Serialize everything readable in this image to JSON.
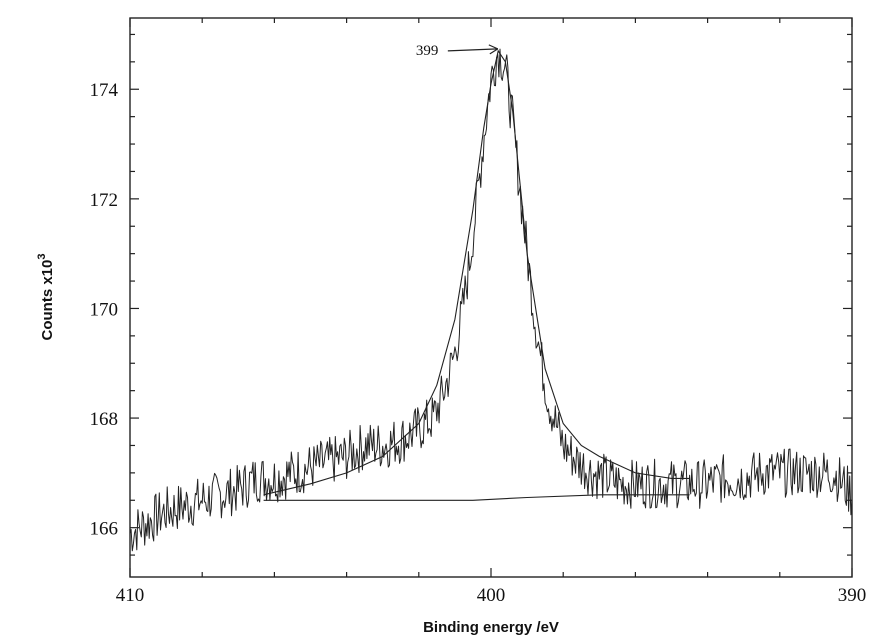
{
  "chart_data": {
    "type": "line",
    "title": "",
    "xlabel": "Binding energy /eV",
    "ylabel": "Counts x10",
    "ylabel_superscript": "3",
    "xlim": [
      410,
      390
    ],
    "ylim": [
      165.1,
      175.3
    ],
    "x_reversed": true,
    "x_ticks": [
      410,
      400,
      390
    ],
    "x_tick_labels": [
      "410",
      "400",
      "390"
    ],
    "y_ticks": [
      166,
      168,
      170,
      172,
      174
    ],
    "y_tick_labels": [
      "166",
      "168",
      "170",
      "172",
      "174"
    ],
    "grid": false,
    "legend": "none",
    "annotations": [
      {
        "text": "399",
        "x": 399.7,
        "y": 174.7
      }
    ],
    "series": [
      {
        "role": "raw-spectrum",
        "x": [
          410.0,
          409.5,
          409.0,
          408.5,
          408.0,
          407.5,
          407.0,
          406.5,
          406.0,
          405.5,
          405.0,
          404.5,
          404.0,
          403.5,
          403.0,
          402.5,
          402.0,
          401.8,
          401.6,
          401.4,
          401.2,
          401.0,
          400.8,
          400.6,
          400.4,
          400.2,
          400.0,
          399.8,
          399.6,
          399.4,
          399.2,
          399.0,
          398.8,
          398.6,
          398.4,
          398.2,
          398.0,
          397.6,
          397.2,
          396.8,
          396.4,
          396.0,
          395.5,
          395.0,
          394.5,
          394.0,
          393.5,
          393.0,
          392.5,
          392.0,
          391.5,
          391.0,
          390.5,
          390.0
        ],
        "y": [
          165.9,
          166.1,
          166.3,
          166.4,
          166.5,
          166.6,
          166.7,
          166.9,
          166.9,
          167.0,
          167.1,
          167.2,
          167.3,
          167.5,
          167.5,
          167.6,
          167.8,
          167.9,
          168.0,
          168.3,
          168.7,
          169.2,
          169.9,
          170.8,
          171.9,
          173.1,
          174.2,
          174.7,
          174.4,
          173.4,
          172.2,
          171.0,
          169.9,
          169.0,
          168.3,
          167.9,
          167.5,
          167.2,
          167.0,
          166.9,
          166.8,
          166.8,
          166.8,
          166.8,
          166.8,
          166.8,
          166.9,
          166.9,
          167.0,
          167.0,
          167.0,
          167.0,
          167.0,
          166.6
        ]
      },
      {
        "role": "fitted-peak",
        "x": [
          406.3,
          405.0,
          404.0,
          403.0,
          402.0,
          401.5,
          401.0,
          400.5,
          400.2,
          400.0,
          399.8,
          399.6,
          399.4,
          399.2,
          399.0,
          398.5,
          398.0,
          397.5,
          397.0,
          396.0,
          395.0,
          394.5
        ],
        "y": [
          166.6,
          166.8,
          167.0,
          167.3,
          167.9,
          168.6,
          169.8,
          171.8,
          173.3,
          174.1,
          174.7,
          174.5,
          173.6,
          172.3,
          171.0,
          168.9,
          167.9,
          167.5,
          167.3,
          167.0,
          166.9,
          166.9
        ]
      },
      {
        "role": "background",
        "x": [
          406.3,
          402.0,
          400.5,
          399.0,
          397.0,
          395.0,
          394.5
        ],
        "y": [
          166.5,
          166.5,
          166.5,
          166.55,
          166.6,
          166.6,
          166.6
        ]
      }
    ]
  }
}
